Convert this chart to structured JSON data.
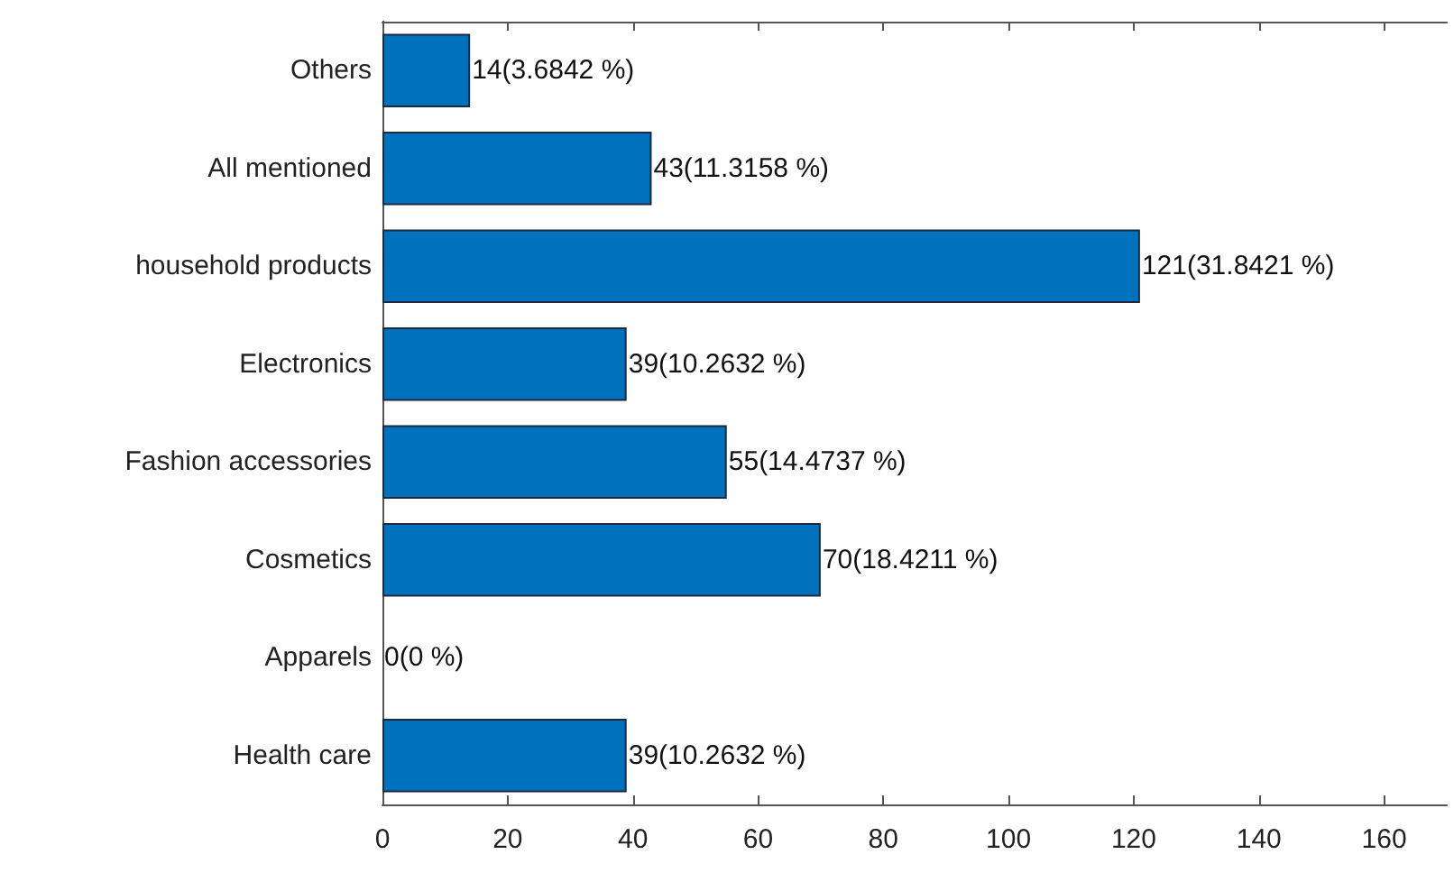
{
  "chart_data": {
    "type": "bar",
    "orientation": "horizontal",
    "categories": [
      "Others",
      "All mentioned",
      "household products",
      "Electronics",
      "Fashion accessories",
      "Cosmetics",
      "Apparels",
      "Health care"
    ],
    "values": [
      14,
      43,
      121,
      39,
      55,
      70,
      0,
      39
    ],
    "value_labels": [
      "14(3.6842 %)",
      "43(11.3158 %)",
      "121(31.8421 %)",
      "39(10.2632 %)",
      "55(14.4737 %)",
      "70(18.4211 %)",
      "0(0 %)",
      "39(10.2632 %)"
    ],
    "color": "#0072bd",
    "xlim": [
      0,
      170
    ],
    "xticks": [
      0,
      20,
      40,
      60,
      80,
      100,
      120,
      140,
      160
    ],
    "grid": false
  }
}
